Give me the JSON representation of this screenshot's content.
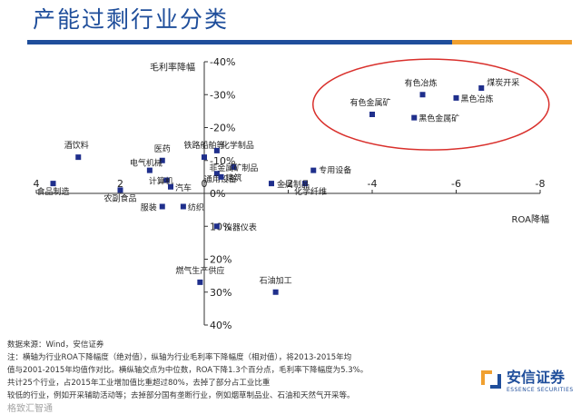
{
  "page": {
    "title": "产能过剩行业分类"
  },
  "chart_data": {
    "type": "scatter",
    "title": "",
    "xlabel": "ROA降幅",
    "ylabel": "毛利率降幅",
    "xlim": [
      4,
      -8
    ],
    "ylim": [
      -40,
      40
    ],
    "x_ticks": [
      4,
      2,
      0,
      -2,
      -4,
      -6,
      -8
    ],
    "y_ticks": [
      -40,
      -30,
      -20,
      -10,
      0,
      10,
      20,
      30,
      40
    ],
    "x_tick_labels": [
      "4",
      "2",
      "0",
      "-2",
      "-4",
      "-6",
      "-8"
    ],
    "y_tick_labels": [
      "-40%",
      "-30%",
      "-20%",
      "-10%",
      "0%",
      "10%",
      "20%",
      "30%",
      "40%"
    ],
    "grid": false,
    "points": [
      {
        "label": "煤炭开采",
        "x": -6.6,
        "y": -32
      },
      {
        "label": "有色冶炼",
        "x": -5.2,
        "y": -30
      },
      {
        "label": "黑色冶炼",
        "x": -6.0,
        "y": -29
      },
      {
        "label": "有色金属矿",
        "x": -4.0,
        "y": -24
      },
      {
        "label": "黑色金属矿",
        "x": -5.0,
        "y": -23
      },
      {
        "label": "酒饮料",
        "x": 3.0,
        "y": -11
      },
      {
        "label": "医药",
        "x": 1.0,
        "y": -10
      },
      {
        "label": "铁路船舶等",
        "x": 0.0,
        "y": -11
      },
      {
        "label": "化学制品",
        "x": -0.3,
        "y": -13
      },
      {
        "label": "电气机械",
        "x": 1.3,
        "y": -7
      },
      {
        "label": "非金属矿制品",
        "x": -0.7,
        "y": -8
      },
      {
        "label": "专用设备",
        "x": -2.6,
        "y": -7
      },
      {
        "label": "通用设备",
        "x": -0.3,
        "y": -6
      },
      {
        "label": "建筑",
        "x": -0.4,
        "y": -5
      },
      {
        "label": "计算机",
        "x": 0.9,
        "y": -4
      },
      {
        "label": "汽车",
        "x": 0.8,
        "y": -2
      },
      {
        "label": "化学纤维",
        "x": -2.4,
        "y": -3
      },
      {
        "label": "金属制品",
        "x": -1.6,
        "y": -3
      },
      {
        "label": "食品制造",
        "x": 3.6,
        "y": -3
      },
      {
        "label": "农副食品",
        "x": 2.0,
        "y": -1
      },
      {
        "label": "服装",
        "x": 1.0,
        "y": 4
      },
      {
        "label": "纺织",
        "x": 0.5,
        "y": 4
      },
      {
        "label": "仪器仪表",
        "x": -0.3,
        "y": 10
      },
      {
        "label": "燃气生产供应",
        "x": 0.1,
        "y": 27
      },
      {
        "label": "石油加工",
        "x": -1.7,
        "y": 30
      }
    ],
    "annotation": "red ellipse highlighting 煤炭开采, 有色冶炼, 黑色冶炼, 有色金属矿, 黑色金属矿",
    "colors": {
      "marker": "#1f2f8c",
      "highlight": "#d9302c",
      "axis": "#333333"
    }
  },
  "notes": [
    "数据来源：Wind，安信证券",
    "注：横轴为行业ROA下降幅度（绝对值），纵轴为行业毛利率下降幅度（相对值），将2013-2015年均",
    "值与2001-2015年均值作对比。横纵轴交点为中位数，ROA下降1.3个百分点，毛利率下降幅度为5.3%。",
    "共计25个行业，占2015年工业增加值比重超过80%，去掉了部分占工业比重",
    "较低的行业，例如开采辅助活动等；去掉部分国有垄断行业，例如烟草制品业、石油和天然气开采等。"
  ],
  "brand": {
    "name_cn": "安信证券",
    "name_en": "ESSENCE SECURITIES"
  },
  "footer": {
    "tag": "格致汇智通"
  }
}
